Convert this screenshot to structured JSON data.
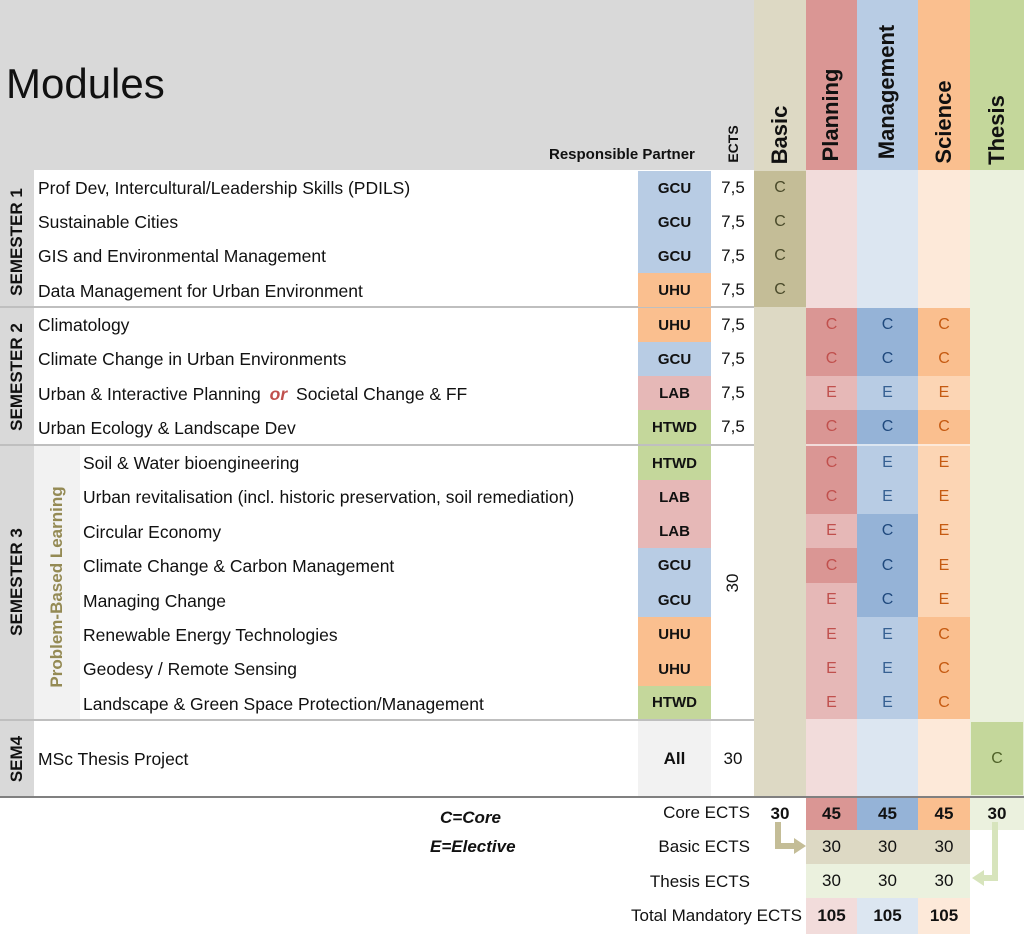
{
  "title": "Modules",
  "responsible_partner_label": "Responsible Partner",
  "ects_header": "ECTS",
  "tracks": [
    {
      "key": "basic",
      "label": "Basic"
    },
    {
      "key": "planning",
      "label": "Planning"
    },
    {
      "key": "management",
      "label": "Management"
    },
    {
      "key": "science",
      "label": "Science"
    },
    {
      "key": "thesis",
      "label": "Thesis"
    }
  ],
  "colors": {
    "header_gray": "#d9d9d9",
    "semester_gray": "#d9d9d9",
    "basic_header": "#ddd9c4",
    "basic_core": "#c4bd97",
    "planning_header": "#da9694",
    "planning_light": "#f2dcdb",
    "planning_elective": "#e6b8b7",
    "management_header": "#b8cce4",
    "management_light": "#dce6f1",
    "management_core": "#95b3d7",
    "science_header": "#fabf8f",
    "science_light": "#fde9d9",
    "science_elective": "#fcd5b4",
    "thesis_header": "#c4d79b",
    "thesis_light": "#ebf1de",
    "gcu": "#b8cce4",
    "uhu": "#fabf8f",
    "lab": "#e6b8b7",
    "htwd": "#c4d79b",
    "all": "#f2f2f2",
    "core_text_red": "#c0504d",
    "pbl_text": "#948a54"
  },
  "semesters": [
    {
      "label": "SEMESTER 1"
    },
    {
      "label": "SEMESTER 2"
    },
    {
      "label": "SEMESTER 3"
    },
    {
      "label": "SEM4"
    }
  ],
  "pbl_label": "Problem-Based Learning",
  "modules": [
    {
      "name": "Prof Dev, Intercultural/Leadership Skills (PDILS)",
      "partner": "GCU",
      "ects": "7,5",
      "basic": "C",
      "planning": "",
      "management": "",
      "science": "",
      "thesis": ""
    },
    {
      "name": "Sustainable Cities",
      "partner": "GCU",
      "ects": "7,5",
      "basic": "C",
      "planning": "",
      "management": "",
      "science": "",
      "thesis": ""
    },
    {
      "name": "GIS and Environmental Management",
      "partner": "GCU",
      "ects": "7,5",
      "basic": "C",
      "planning": "",
      "management": "",
      "science": "",
      "thesis": ""
    },
    {
      "name": "Data Management for Urban Environment",
      "partner": "UHU",
      "ects": "7,5",
      "basic": "C",
      "planning": "",
      "management": "",
      "science": "",
      "thesis": ""
    },
    {
      "name": "Climatology",
      "partner": "UHU",
      "ects": "7,5",
      "basic": "",
      "planning": "C",
      "management": "C",
      "science": "C",
      "thesis": ""
    },
    {
      "name": "Climate Change in Urban Environments",
      "partner": "GCU",
      "ects": "7,5",
      "basic": "",
      "planning": "C",
      "management": "C",
      "science": "C",
      "thesis": ""
    },
    {
      "name_a": "Urban & Interactive Planning",
      "name_or": "or",
      "name_b": "Societal Change & FF",
      "partner": "LAB",
      "ects": "7,5",
      "basic": "",
      "planning": "E",
      "management": "E",
      "science": "E",
      "thesis": ""
    },
    {
      "name": "Urban Ecology & Landscape Dev",
      "partner": "HTWD",
      "ects": "7,5",
      "basic": "",
      "planning": "C",
      "management": "C",
      "science": "C",
      "thesis": ""
    },
    {
      "name": "Soil & Water bioengineering",
      "partner": "HTWD",
      "basic": "",
      "planning": "C",
      "management": "E",
      "science": "E",
      "thesis": ""
    },
    {
      "name": "Urban revitalisation (incl. historic preservation, soil remediation)",
      "partner": "LAB",
      "basic": "",
      "planning": "C",
      "management": "E",
      "science": "E",
      "thesis": ""
    },
    {
      "name": "Circular Economy",
      "partner": "LAB",
      "basic": "",
      "planning": "E",
      "management": "C",
      "science": "E",
      "thesis": ""
    },
    {
      "name": "Climate Change & Carbon Management",
      "partner": "GCU",
      "basic": "",
      "planning": "C",
      "management": "C",
      "science": "E",
      "thesis": ""
    },
    {
      "name": "Managing Change",
      "partner": "GCU",
      "basic": "",
      "planning": "E",
      "management": "C",
      "science": "E",
      "thesis": ""
    },
    {
      "name": "Renewable Energy Technologies",
      "partner": "UHU",
      "basic": "",
      "planning": "E",
      "management": "E",
      "science": "C",
      "thesis": ""
    },
    {
      "name": "Geodesy / Remote Sensing",
      "partner": "UHU",
      "basic": "",
      "planning": "E",
      "management": "E",
      "science": "C",
      "thesis": ""
    },
    {
      "name": "Landscape & Green Space Protection/Management",
      "partner": "HTWD",
      "basic": "",
      "planning": "E",
      "management": "E",
      "science": "C",
      "thesis": ""
    },
    {
      "name": "MSc Thesis Project",
      "partner": "All",
      "ects": "30",
      "basic": "",
      "planning": "",
      "management": "",
      "science": "",
      "thesis": "C"
    }
  ],
  "sem3_ects": "30",
  "legend": {
    "core": "C=Core",
    "elective": "E=Elective"
  },
  "summary": {
    "core_label": "Core ECTS",
    "core": {
      "basic": "30",
      "planning": "45",
      "management": "45",
      "science": "45",
      "thesis": "30"
    },
    "basic_label": "Basic ECTS",
    "basic": {
      "planning": "30",
      "management": "30",
      "science": "30"
    },
    "thesis_label": "Thesis ECTS",
    "thesis": {
      "planning": "30",
      "management": "30",
      "science": "30"
    },
    "total_label": "Total Mandatory ECTS",
    "total": {
      "planning": "105",
      "management": "105",
      "science": "105"
    }
  }
}
